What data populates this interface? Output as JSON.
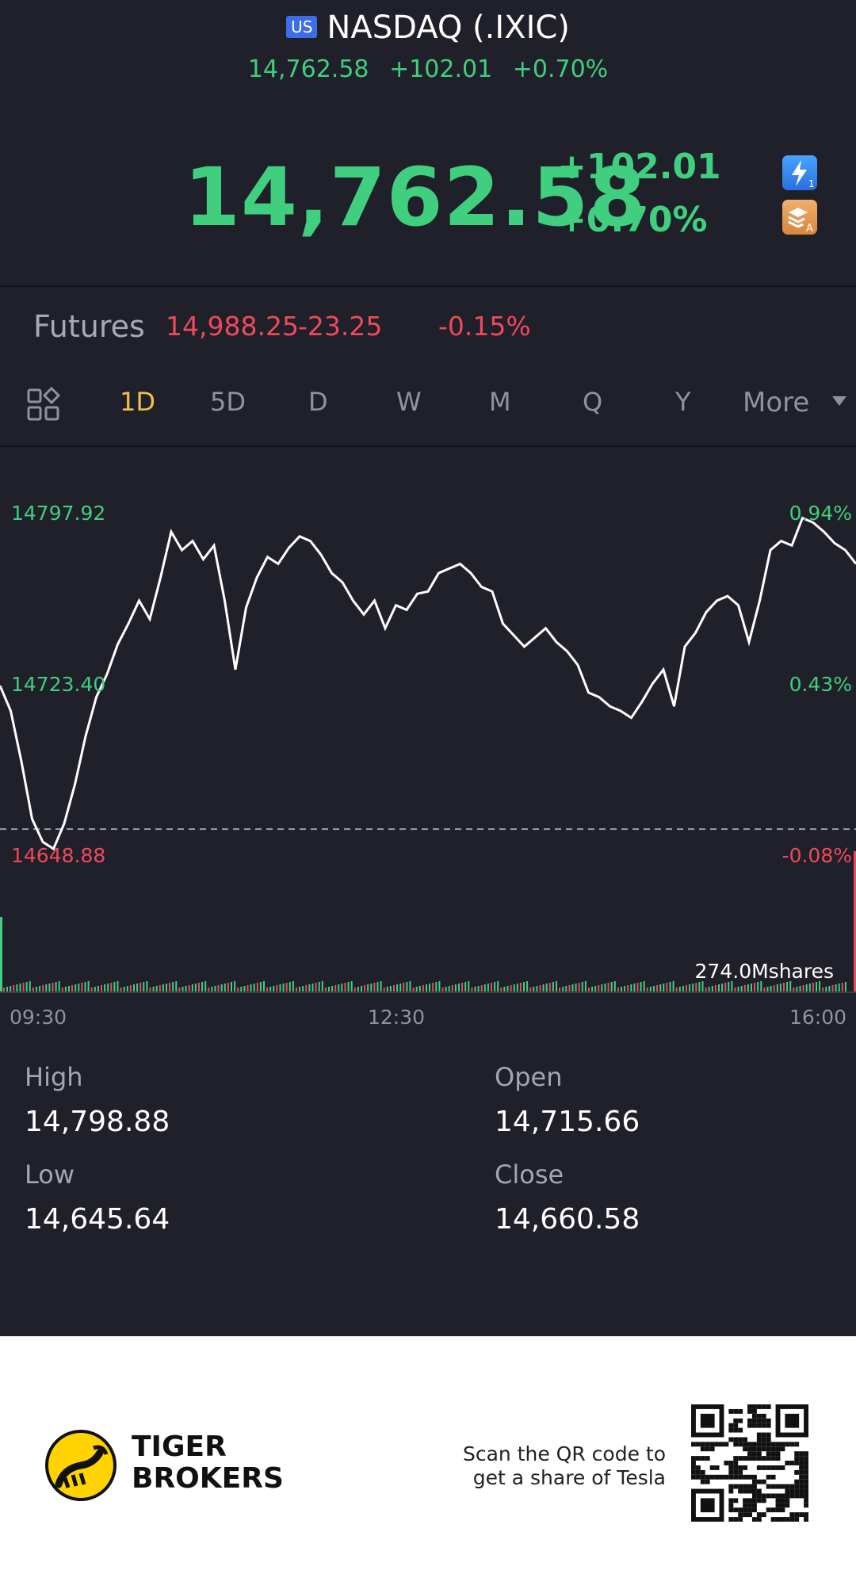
{
  "header": {
    "market_badge": "US",
    "title": "NASDAQ (.IXIC)",
    "sub_price": "14,762.58",
    "sub_change": "+102.01",
    "sub_percent": "+0.70%"
  },
  "quote": {
    "price": "14,762.58",
    "change": "+102.01",
    "percent": "+0.70%"
  },
  "futures": {
    "label": "Futures",
    "price": "14,988.25",
    "change": "-23.25",
    "percent": "-0.15%"
  },
  "tabs": [
    {
      "label": "1D",
      "active": true
    },
    {
      "label": "5D",
      "active": false
    },
    {
      "label": "D",
      "active": false
    },
    {
      "label": "W",
      "active": false
    },
    {
      "label": "M",
      "active": false
    },
    {
      "label": "Q",
      "active": false
    },
    {
      "label": "Y",
      "active": false
    },
    {
      "label": "More",
      "active": false
    }
  ],
  "chart_data": {
    "type": "line",
    "y_left_ticks": [
      "14797.92",
      "14723.40",
      "14648.88"
    ],
    "y_right_ticks": [
      "0.94%",
      "0.43%",
      "-0.08%"
    ],
    "x_ticks": [
      "09:30",
      "12:30",
      "16:00"
    ],
    "ylim": [
      14648.88,
      14797.92
    ],
    "reference_close": 14660.58,
    "volume_label": "274.0Mshares",
    "series": [
      {
        "values": [
          14723,
          14712,
          14690,
          14665,
          14655,
          14652,
          14663,
          14680,
          14701,
          14718,
          14728,
          14741,
          14750,
          14760,
          14752,
          14770,
          14790,
          14782,
          14786,
          14778,
          14784,
          14760,
          14730,
          14757,
          14770,
          14779,
          14776,
          14783,
          14788,
          14786,
          14780,
          14772,
          14768,
          14760,
          14754,
          14760,
          14748,
          14758,
          14756,
          14763,
          14764,
          14772,
          14774,
          14776,
          14772,
          14766,
          14764,
          14750,
          14745,
          14740,
          14744,
          14748,
          14742,
          14738,
          14732,
          14720,
          14718,
          14714,
          14712,
          14709,
          14716,
          14724,
          14730,
          14714,
          14740,
          14746,
          14755,
          14760,
          14762,
          14758,
          14742,
          14760,
          14782,
          14786,
          14784,
          14796,
          14794,
          14790,
          14785,
          14782,
          14776
        ]
      }
    ]
  },
  "stats": {
    "high_label": "High",
    "high": "14,798.88",
    "open_label": "Open",
    "open": "14,715.66",
    "low_label": "Low",
    "low": "14,645.64",
    "close_label": "Close",
    "close": "14,660.58"
  },
  "footer": {
    "brand_line1": "TIGER",
    "brand_line2": "BROKERS",
    "scan_line1": "Scan the QR code to",
    "scan_line2": "get a share of Tesla"
  },
  "colors": {
    "up": "#3fcf7f",
    "down": "#f0485c",
    "active_tab": "#f2c14a",
    "background": "#1f2029"
  }
}
